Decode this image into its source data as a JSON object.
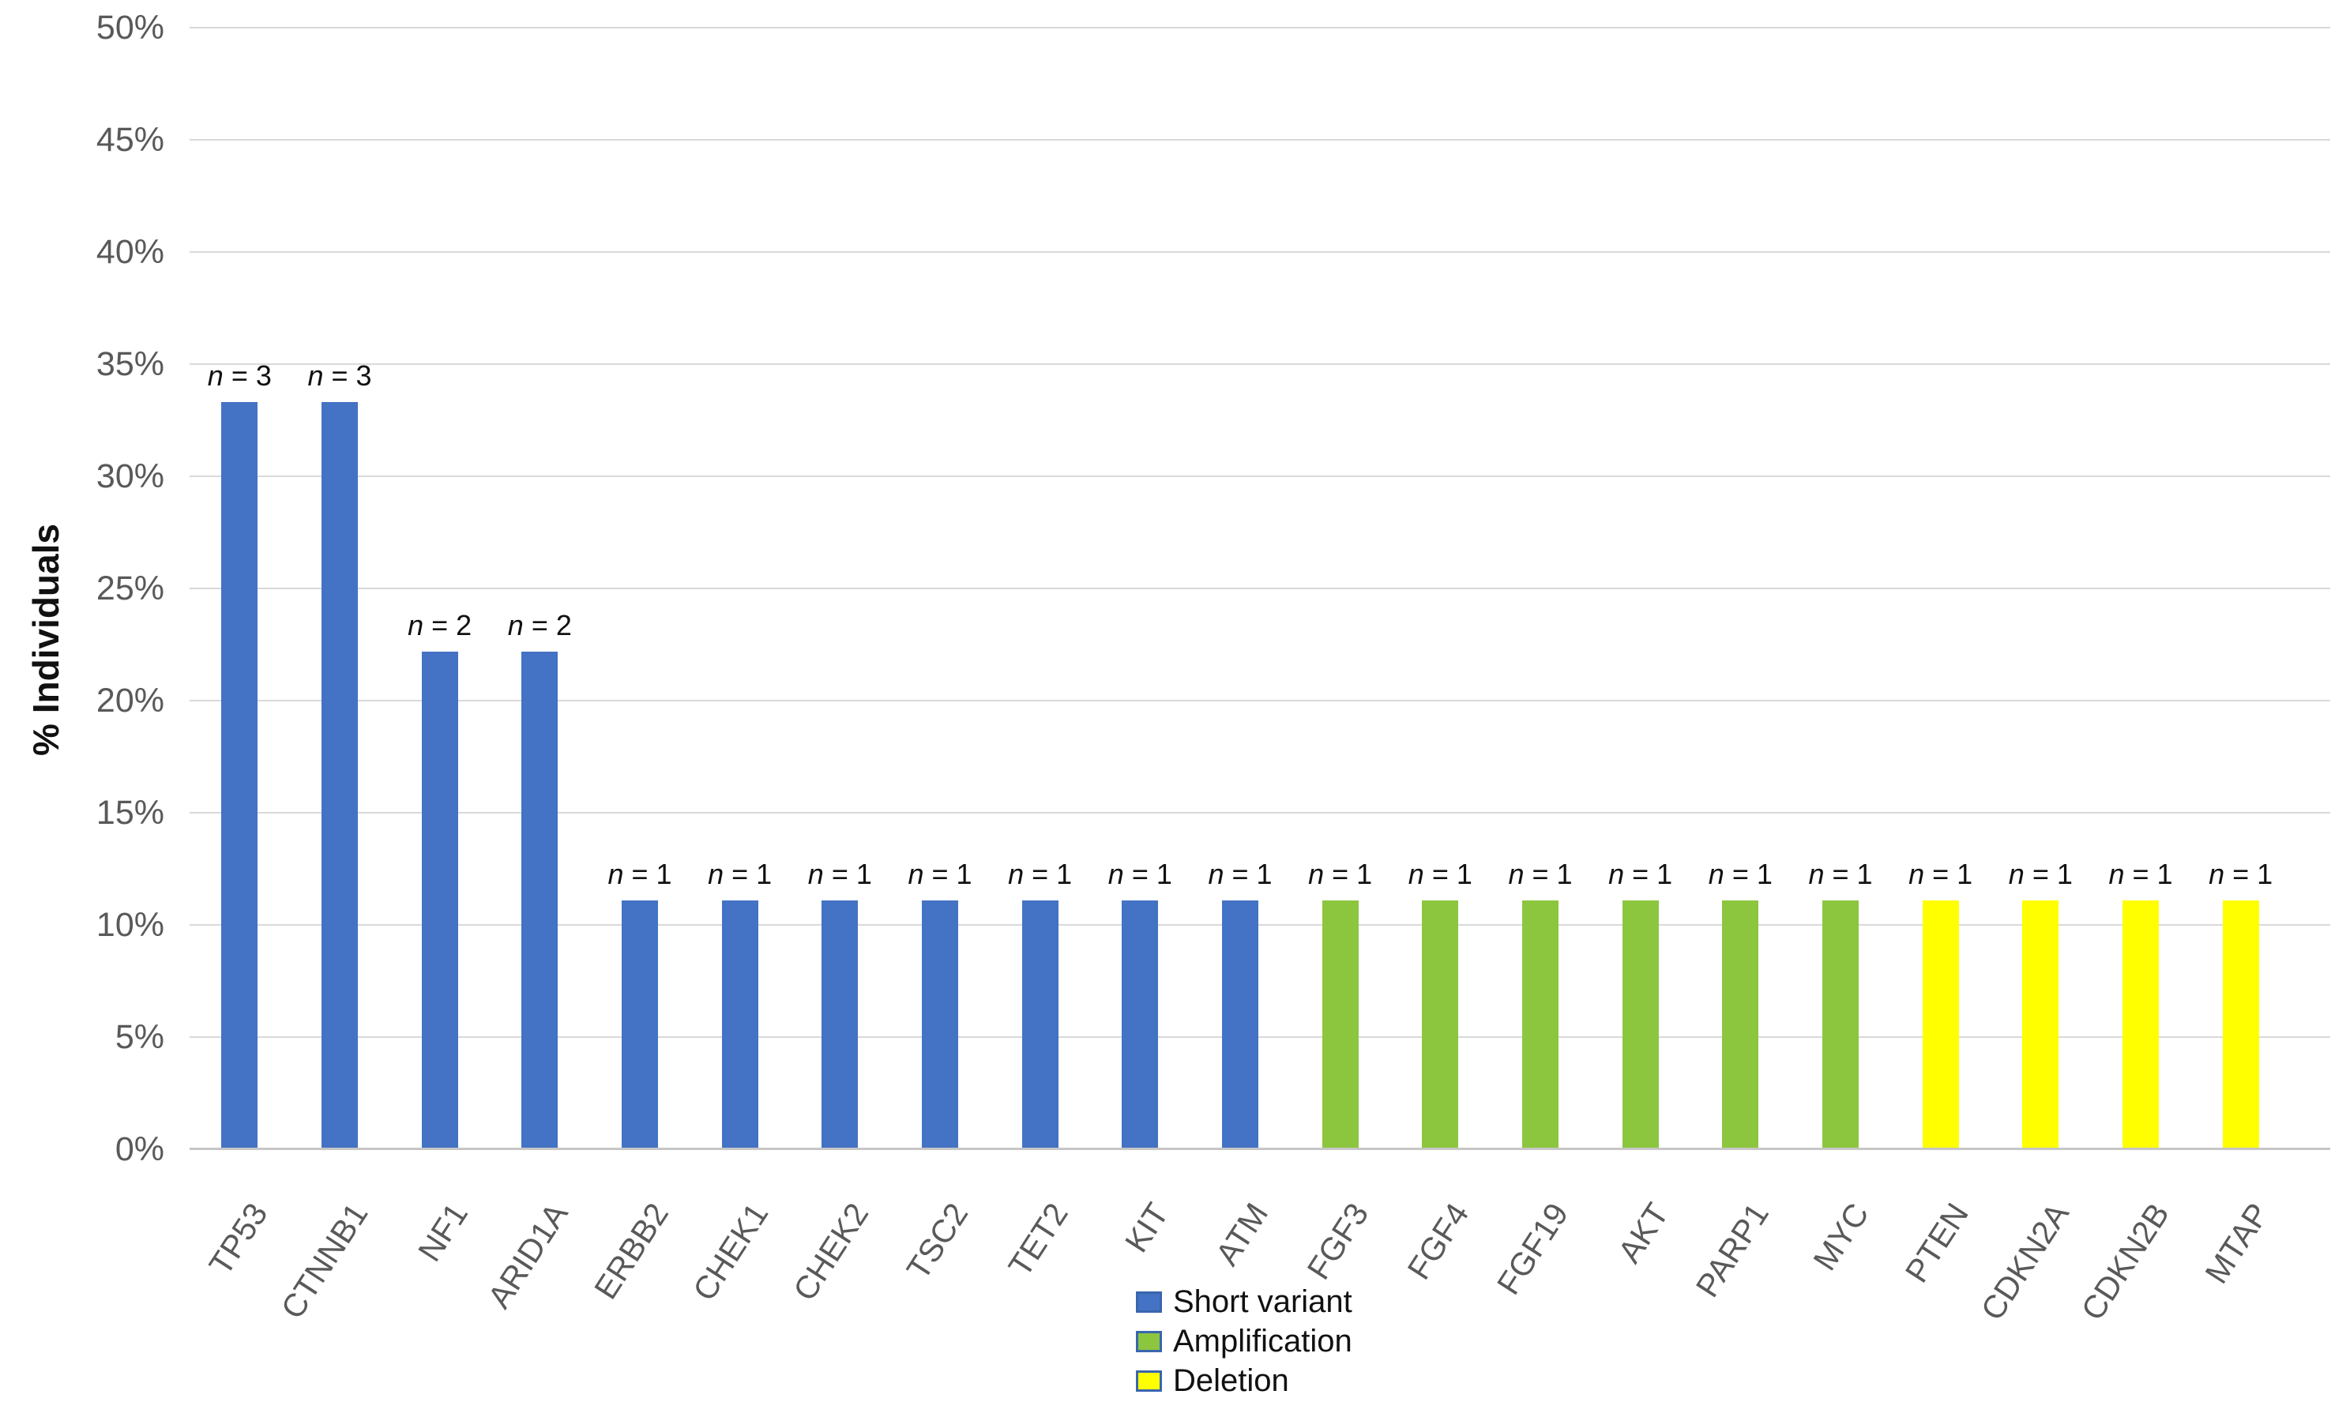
{
  "chart_data": {
    "type": "bar",
    "title": "",
    "ylabel": "% Individuals",
    "xlabel": "",
    "ylim": [
      0,
      50
    ],
    "ytick_step": 5,
    "yticks": [
      {
        "value": 0,
        "label": "0%"
      },
      {
        "value": 5,
        "label": "5%"
      },
      {
        "value": 10,
        "label": "10%"
      },
      {
        "value": 15,
        "label": "15%"
      },
      {
        "value": 20,
        "label": "20%"
      },
      {
        "value": 25,
        "label": "25%"
      },
      {
        "value": 30,
        "label": "30%"
      },
      {
        "value": 35,
        "label": "35%"
      },
      {
        "value": 40,
        "label": "40%"
      },
      {
        "value": 45,
        "label": "45%"
      },
      {
        "value": 50,
        "label": "50%"
      }
    ],
    "grid": true,
    "legend_position": "bottom-center",
    "count_label_prefix": "n",
    "count_label_separator": " = ",
    "series_colors": {
      "short_variant": "#4472C4",
      "amplification": "#8CC63F",
      "deletion": "#FFFF00"
    },
    "legend": [
      {
        "name": "Short variant",
        "key": "short_variant",
        "color": "#4472C4"
      },
      {
        "name": "Amplification",
        "key": "amplification",
        "color": "#8CC63F"
      },
      {
        "name": "Deletion",
        "key": "deletion",
        "color": "#FFFF00"
      }
    ],
    "bars": [
      {
        "gene": "TP53",
        "value_pct": 33.3,
        "count": 3,
        "key": "short_variant"
      },
      {
        "gene": "CTNNB1",
        "value_pct": 33.3,
        "count": 3,
        "key": "short_variant"
      },
      {
        "gene": "NF1",
        "value_pct": 22.2,
        "count": 2,
        "key": "short_variant"
      },
      {
        "gene": "ARID1A",
        "value_pct": 22.2,
        "count": 2,
        "key": "short_variant"
      },
      {
        "gene": "ERBB2",
        "value_pct": 11.1,
        "count": 1,
        "key": "short_variant"
      },
      {
        "gene": "CHEK1",
        "value_pct": 11.1,
        "count": 1,
        "key": "short_variant"
      },
      {
        "gene": "CHEK2",
        "value_pct": 11.1,
        "count": 1,
        "key": "short_variant"
      },
      {
        "gene": "TSC2",
        "value_pct": 11.1,
        "count": 1,
        "key": "short_variant"
      },
      {
        "gene": "TET2",
        "value_pct": 11.1,
        "count": 1,
        "key": "short_variant"
      },
      {
        "gene": "KIT",
        "value_pct": 11.1,
        "count": 1,
        "key": "short_variant"
      },
      {
        "gene": "ATM",
        "value_pct": 11.1,
        "count": 1,
        "key": "short_variant"
      },
      {
        "gene": "FGF3",
        "value_pct": 11.1,
        "count": 1,
        "key": "amplification"
      },
      {
        "gene": "FGF4",
        "value_pct": 11.1,
        "count": 1,
        "key": "amplification"
      },
      {
        "gene": "FGF19",
        "value_pct": 11.1,
        "count": 1,
        "key": "amplification"
      },
      {
        "gene": "AKT",
        "value_pct": 11.1,
        "count": 1,
        "key": "amplification"
      },
      {
        "gene": "PARP1",
        "value_pct": 11.1,
        "count": 1,
        "key": "amplification"
      },
      {
        "gene": "MYC",
        "value_pct": 11.1,
        "count": 1,
        "key": "amplification"
      },
      {
        "gene": "PTEN",
        "value_pct": 11.1,
        "count": 1,
        "key": "deletion"
      },
      {
        "gene": "CDKN2A",
        "value_pct": 11.1,
        "count": 1,
        "key": "deletion"
      },
      {
        "gene": "CDKN2B",
        "value_pct": 11.1,
        "count": 1,
        "key": "deletion"
      },
      {
        "gene": "MTAP",
        "value_pct": 11.1,
        "count": 1,
        "key": "deletion"
      }
    ]
  }
}
